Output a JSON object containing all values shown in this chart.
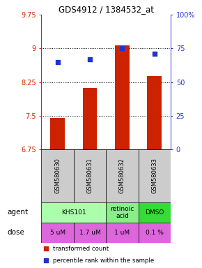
{
  "title": "GDS4912 / 1384532_at",
  "samples": [
    "GSM580630",
    "GSM580631",
    "GSM580632",
    "GSM580633"
  ],
  "bar_values": [
    7.45,
    8.12,
    9.07,
    8.38
  ],
  "percentile_values": [
    65,
    67,
    75,
    71
  ],
  "bar_color": "#cc2200",
  "dot_color": "#2233cc",
  "ylim_left": [
    6.75,
    9.75
  ],
  "ylim_right": [
    0,
    100
  ],
  "yticks_left": [
    6.75,
    7.5,
    8.25,
    9.0,
    9.75
  ],
  "ytick_labels_left": [
    "6.75",
    "7.5",
    "8.25",
    "9",
    "9.75"
  ],
  "yticks_right": [
    0,
    25,
    50,
    75,
    100
  ],
  "ytick_labels_right": [
    "0",
    "25",
    "50",
    "75",
    "100%"
  ],
  "hlines": [
    7.5,
    8.25,
    9.0
  ],
  "agent_texts": [
    "KHS101",
    "retinoic\nacid",
    "DMSO"
  ],
  "agent_colors": [
    "#aaffaa",
    "#88ee88",
    "#33dd33"
  ],
  "dose_labels": [
    "5 uM",
    "1.7 uM",
    "1 uM",
    "0.1 %"
  ],
  "dose_color": "#dd66dd",
  "sample_bg_color": "#cccccc",
  "legend_red_label": "transformed count",
  "legend_blue_label": "percentile rank within the sample",
  "left_label_color": "#cc2200",
  "right_label_color": "#2233cc",
  "bg_color": "#ffffff"
}
